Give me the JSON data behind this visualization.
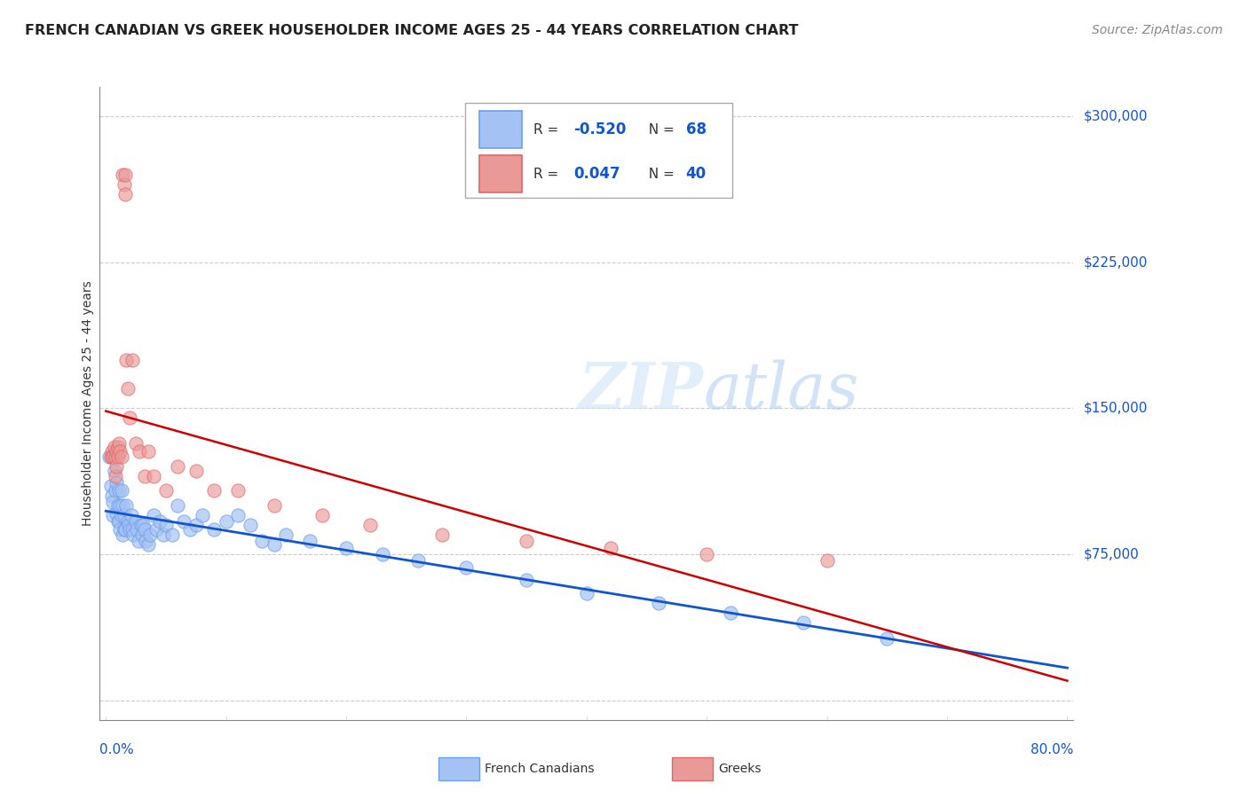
{
  "title": "FRENCH CANADIAN VS GREEK HOUSEHOLDER INCOME AGES 25 - 44 YEARS CORRELATION CHART",
  "source": "Source: ZipAtlas.com",
  "ylabel": "Householder Income Ages 25 - 44 years",
  "yticks": [
    0,
    75000,
    150000,
    225000,
    300000
  ],
  "ytick_labels": [
    "",
    "$75,000",
    "$150,000",
    "$225,000",
    "$300,000"
  ],
  "xmin": 0.0,
  "xmax": 80.0,
  "ymin": 0,
  "ymax": 315000,
  "french_R": -0.52,
  "french_N": 68,
  "greek_R": 0.047,
  "greek_N": 40,
  "french_fill_color": "#a4c2f4",
  "french_edge_color": "#6d9eeb",
  "greek_fill_color": "#ea9999",
  "greek_edge_color": "#e06666",
  "trend_french_color": "#1155cc",
  "trend_greek_color": "#cc0000",
  "background_color": "#ffffff",
  "title_fontsize": 11.5,
  "source_fontsize": 10,
  "french_x": [
    0.3,
    0.4,
    0.5,
    0.6,
    0.6,
    0.7,
    0.8,
    0.9,
    0.9,
    1.0,
    1.0,
    1.1,
    1.1,
    1.2,
    1.2,
    1.3,
    1.3,
    1.4,
    1.4,
    1.5,
    1.5,
    1.6,
    1.7,
    1.8,
    1.9,
    2.0,
    2.1,
    2.2,
    2.3,
    2.5,
    2.6,
    2.7,
    2.9,
    3.0,
    3.1,
    3.2,
    3.3,
    3.5,
    3.7,
    4.0,
    4.2,
    4.5,
    4.8,
    5.0,
    5.5,
    6.0,
    6.5,
    7.0,
    7.5,
    8.0,
    9.0,
    10.0,
    11.0,
    12.0,
    13.0,
    14.0,
    15.0,
    17.0,
    20.0,
    23.0,
    26.0,
    30.0,
    35.0,
    40.0,
    46.0,
    52.0,
    58.0,
    65.0
  ],
  "french_y": [
    125000,
    110000,
    105000,
    102000,
    95000,
    118000,
    108000,
    112000,
    96000,
    100000,
    92000,
    108000,
    92000,
    100000,
    88000,
    108000,
    95000,
    100000,
    85000,
    95000,
    88000,
    88000,
    100000,
    92000,
    90000,
    88000,
    95000,
    88000,
    85000,
    92000,
    88000,
    82000,
    90000,
    85000,
    90000,
    88000,
    82000,
    80000,
    85000,
    95000,
    88000,
    92000,
    85000,
    90000,
    85000,
    100000,
    92000,
    88000,
    90000,
    95000,
    88000,
    92000,
    95000,
    90000,
    82000,
    80000,
    85000,
    82000,
    78000,
    75000,
    72000,
    68000,
    62000,
    55000,
    50000,
    45000,
    40000,
    32000
  ],
  "greek_x": [
    0.4,
    0.5,
    0.6,
    0.6,
    0.7,
    0.8,
    0.8,
    0.9,
    0.9,
    1.0,
    1.0,
    1.1,
    1.2,
    1.3,
    1.4,
    1.5,
    1.6,
    1.6,
    1.7,
    1.8,
    2.0,
    2.2,
    2.5,
    2.8,
    3.2,
    3.5,
    4.0,
    5.0,
    6.0,
    7.5,
    9.0,
    11.0,
    14.0,
    18.0,
    22.0,
    28.0,
    35.0,
    42.0,
    50.0,
    60.0
  ],
  "greek_y": [
    125000,
    128000,
    125000,
    125000,
    130000,
    115000,
    125000,
    128000,
    120000,
    125000,
    130000,
    132000,
    128000,
    125000,
    270000,
    265000,
    270000,
    260000,
    175000,
    160000,
    145000,
    175000,
    132000,
    128000,
    115000,
    128000,
    115000,
    108000,
    120000,
    118000,
    108000,
    108000,
    100000,
    95000,
    90000,
    85000,
    82000,
    78000,
    75000,
    72000
  ]
}
